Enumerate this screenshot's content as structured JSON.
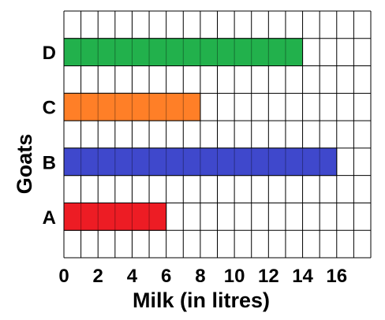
{
  "chart_data": {
    "type": "bar",
    "orientation": "horizontal",
    "categories": [
      "A",
      "B",
      "C",
      "D"
    ],
    "values": [
      6,
      16,
      8,
      14
    ],
    "colors": [
      "#ed1c24",
      "#3f48cc",
      "#ff7f27",
      "#22b14c"
    ],
    "xlabel": "Milk (in litres)",
    "ylabel": "Goats",
    "x_ticks": [
      "0",
      "2",
      "4",
      "6",
      "8",
      "10",
      "12",
      "14",
      "16"
    ],
    "xlim": [
      0,
      18
    ],
    "grid": true
  }
}
